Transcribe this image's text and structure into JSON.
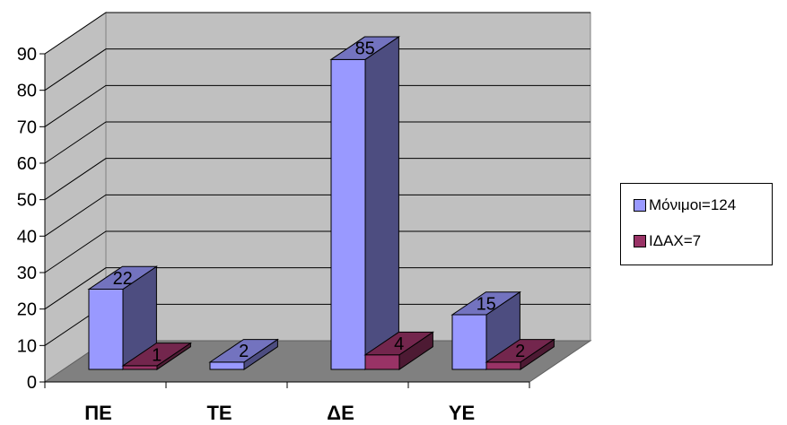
{
  "chart_data": {
    "type": "bar",
    "categories": [
      "ΠΕ",
      "ΤΕ",
      "ΔΕ",
      "ΥΕ"
    ],
    "series": [
      {
        "name": "Μόνιμοι=124",
        "values": [
          22,
          2,
          85,
          15
        ],
        "color": "#9999ff"
      },
      {
        "name": "ΙΔΑΧ=7",
        "values": [
          1,
          null,
          4,
          2
        ],
        "color": "#993366"
      }
    ],
    "ylim": [
      0,
      90
    ],
    "yticks": [
      0,
      10,
      20,
      30,
      40,
      50,
      60,
      70,
      80,
      90
    ],
    "grid": true,
    "legend_position": "right",
    "style": "3d-clustered"
  }
}
